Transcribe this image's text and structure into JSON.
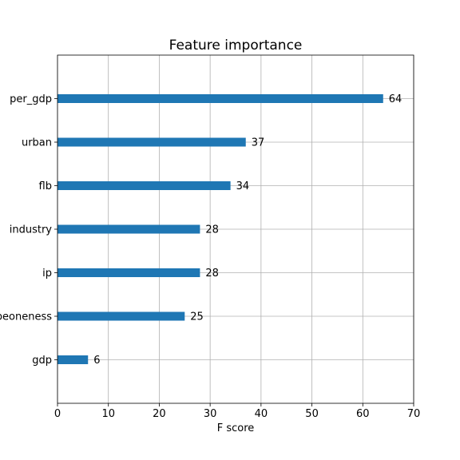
{
  "chart_data": {
    "type": "bar",
    "orientation": "horizontal",
    "title": "Feature importance",
    "xlabel": "F score",
    "ylabel": "",
    "categories": [
      "per_gdp",
      "urban",
      "flb",
      "industry",
      "ip",
      "opeoneness",
      "gdp"
    ],
    "values": [
      64,
      37,
      34,
      28,
      28,
      25,
      6
    ],
    "xlim": [
      0,
      70
    ],
    "xticks": [
      0,
      10,
      20,
      30,
      40,
      50,
      60,
      70
    ],
    "grid": true,
    "bar_color": "#1f77b4",
    "show_value_labels": true
  }
}
